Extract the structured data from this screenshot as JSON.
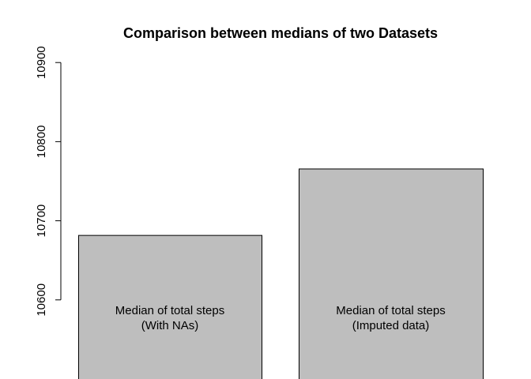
{
  "chart_data": {
    "type": "bar",
    "title": "Comparison between medians of two Datasets",
    "xlabel": "",
    "ylabel": "",
    "categories": [
      [
        "Median of total steps",
        "(With NAs)"
      ],
      [
        "Median of total steps",
        "(Imputed data)"
      ]
    ],
    "values": [
      10682,
      10766
    ],
    "ylim": [
      10500,
      10900
    ],
    "yticks": [
      "10600",
      "10700",
      "10800",
      "10900"
    ],
    "bar_color": "#bebebe",
    "bar_border_color": "#000000",
    "legend": "none",
    "grid": false
  }
}
